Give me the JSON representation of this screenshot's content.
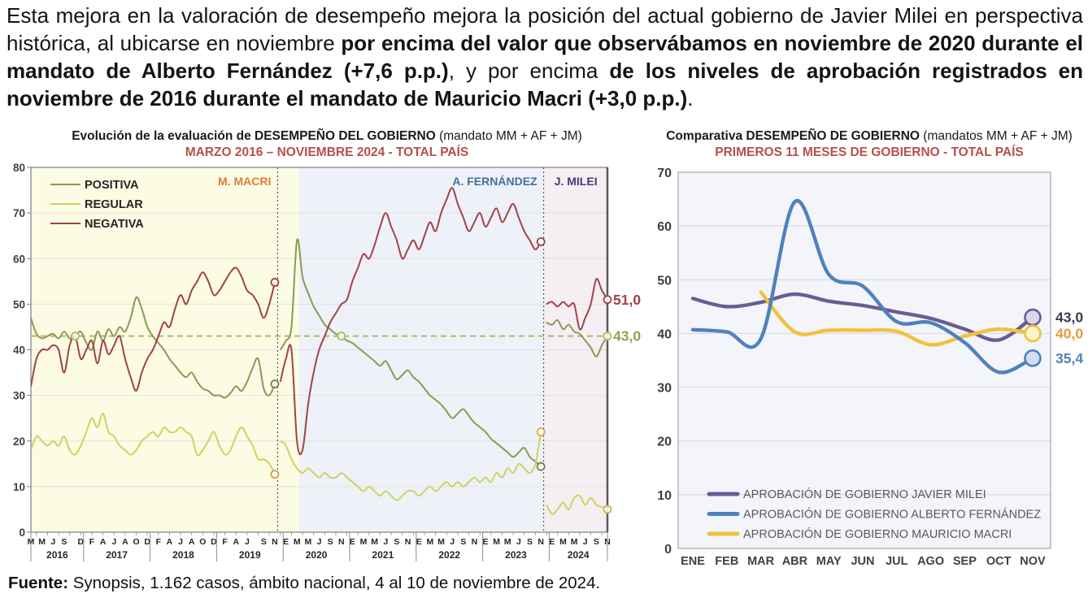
{
  "paragraph": {
    "segments": [
      {
        "text": "Esta mejora en la valoración de desempeño mejora la posición del actual gobierno de Javier Milei en perspectiva histórica, al ubicarse en noviembre ",
        "bold": false
      },
      {
        "text": "por encima del valor que observábamos en noviembre de 2020 durante el mandato de Alberto Fernández (+7,6 p.p.)",
        "bold": true
      },
      {
        "text": ", y por encima ",
        "bold": false
      },
      {
        "text": "de los niveles de aprobación registrados en noviembre de 2016 durante el mandato de Mauricio Macri (+3,0 p.p.)",
        "bold": true
      },
      {
        "text": ".",
        "bold": false
      }
    ]
  },
  "footer": {
    "segments": [
      {
        "text": "Fuente:",
        "bold": true
      },
      {
        "text": " Synopsis, 1.162 casos, ámbito nacional, 4 al 10 de noviembre de 2024.",
        "bold": false
      }
    ]
  },
  "chart_data": [
    {
      "id": "evolution",
      "type": "line",
      "title": "Evolución de la evaluación de DESEMPEÑO DEL GOBIERNO",
      "title_suffix": " (mandato MM + AF + JM)",
      "subtitle": "MARZO 2016 – NOVIEMBRE 2024 - TOTAL PAÍS",
      "ylim": [
        0,
        80
      ],
      "ytick_step": 10,
      "n_points": 105,
      "x_start": "MARZO 2016",
      "x_end": "NOVIEMBRE 2024",
      "grid": true,
      "segment_breaks": [
        45,
        93
      ],
      "bg_bands": [
        {
          "end_index": 48.4,
          "color": "#fcfbe3"
        },
        {
          "end_index": 92.5,
          "color": "#eef1f8"
        },
        {
          "end_index": 104,
          "color": "#f5eef3"
        }
      ],
      "divider_indices": [
        44.5,
        92.5
      ],
      "region_labels": [
        {
          "text": "M. MACRI",
          "color": "#e07c3a",
          "anchor_index": 44.5,
          "align": "end"
        },
        {
          "text": "A. FERNÁNDEZ",
          "color": "#41719c",
          "anchor_index": 92.5,
          "align": "end"
        },
        {
          "text": "J. MILEI",
          "color": "#3e3e75",
          "anchor_index": 98.3,
          "align": "middle"
        }
      ],
      "reference_line": {
        "value": 43,
        "color": "#a8bc66"
      },
      "series": [
        {
          "name": "POSITIVA",
          "color": "#8a9a56",
          "values": [
            47,
            43.5,
            42.5,
            43,
            43.5,
            42.5,
            44,
            42.5,
            43,
            44,
            41.5,
            40,
            44,
            42,
            44.5,
            43,
            45,
            44,
            47,
            51.5,
            49,
            45,
            43,
            41.5,
            40,
            38,
            36.5,
            35,
            34,
            35,
            33,
            31.5,
            31,
            30,
            30,
            29.5,
            30.5,
            32,
            31,
            33,
            36,
            38,
            31.5,
            30,
            32.5,
            40,
            42,
            45,
            64,
            56,
            52.5,
            49.5,
            47.5,
            45.5,
            44.5,
            43.5,
            43,
            42,
            41.5,
            40.5,
            39.5,
            38.5,
            37.5,
            36.5,
            37.5,
            35.5,
            33.5,
            34.5,
            35.5,
            34,
            33,
            31.5,
            30,
            29,
            28,
            26.5,
            25,
            26,
            27,
            25.5,
            24,
            23,
            22,
            20.5,
            19.5,
            18.5,
            17.5,
            16.5,
            17.5,
            18.5,
            16.5,
            15.5,
            14.4,
            46,
            45.5,
            46.5,
            44.5,
            45.5,
            44,
            43.5,
            42,
            40.5,
            38.5,
            41,
            43
          ]
        },
        {
          "name": "REGULAR",
          "color": "#cdd35f",
          "values": [
            18,
            21,
            20,
            19,
            20,
            19,
            21,
            18,
            17,
            19,
            22,
            25,
            23,
            26,
            22,
            21,
            19,
            18,
            17,
            18,
            20,
            21,
            22,
            21,
            23,
            22,
            22,
            23,
            22,
            21,
            17,
            18,
            20,
            22,
            19,
            17,
            18,
            21,
            23,
            21,
            19,
            16,
            16,
            15,
            12.7,
            20,
            19,
            16,
            14,
            13,
            14,
            13,
            12,
            13,
            12,
            12,
            13,
            12,
            11,
            10,
            9,
            10,
            9,
            8,
            9,
            8,
            7,
            8,
            9,
            9,
            8,
            9,
            10,
            9,
            10,
            11,
            10,
            11,
            10,
            11,
            12,
            11,
            12,
            11,
            13,
            12,
            14,
            13,
            15,
            14,
            13,
            15,
            22,
            6,
            4,
            5,
            6.5,
            5,
            7.5,
            8,
            6,
            7.5,
            6,
            5.5,
            5
          ]
        },
        {
          "name": "NEGATIVA",
          "color": "#a04345",
          "values": [
            32,
            38,
            40,
            40,
            41,
            40,
            35,
            41,
            43,
            38,
            40,
            42,
            37,
            42,
            39,
            41,
            43,
            38,
            34,
            31,
            35,
            38,
            40,
            43,
            46,
            45,
            49,
            52,
            50,
            53,
            55,
            57,
            55,
            52,
            53,
            55,
            57,
            58,
            56,
            53,
            52,
            50,
            47,
            50,
            54.8,
            33,
            38,
            40,
            20,
            18,
            28,
            35,
            40,
            43,
            46,
            48,
            50,
            51,
            55,
            58,
            61,
            60,
            63,
            67,
            70,
            67,
            64,
            60,
            62,
            64,
            62,
            65,
            68,
            66,
            70,
            73,
            75.5,
            72,
            69,
            66,
            68,
            70,
            67,
            69,
            71,
            68,
            70,
            72,
            69,
            66,
            64,
            62,
            63.7,
            50,
            50.5,
            49.5,
            50.5,
            49.5,
            50,
            44.5,
            47,
            50,
            55.5,
            53,
            51
          ]
        }
      ],
      "markers": [
        {
          "i": 8,
          "v": 43,
          "stroke": "#a8bc66"
        },
        {
          "i": 44,
          "v": 54.8,
          "stroke": "#a04345"
        },
        {
          "i": 44,
          "v": 32.5,
          "stroke": "#71803f"
        },
        {
          "i": 44,
          "v": 12.7,
          "stroke": "#e0973f"
        },
        {
          "i": 56,
          "v": 43,
          "stroke": "#a8bc66"
        },
        {
          "i": 92,
          "v": 63.7,
          "stroke": "#a04345"
        },
        {
          "i": 92,
          "v": 22,
          "stroke": "#d3b13f"
        },
        {
          "i": 92,
          "v": 14.4,
          "stroke": "#71803f"
        },
        {
          "i": 104,
          "v": 51,
          "stroke": "#a04345"
        },
        {
          "i": 104,
          "v": 43,
          "stroke": "#a8bc66"
        },
        {
          "i": 104,
          "v": 5,
          "stroke": "#d3b13f"
        }
      ],
      "end_labels": [
        {
          "text": "51,0",
          "value": 51.0,
          "color": "#a04345"
        },
        {
          "text": "43,0",
          "value": 43.0,
          "color": "#8fa44f"
        }
      ],
      "month_letters": [
        {
          "t": "M",
          "i": 0
        },
        {
          "t": "M",
          "i": 2
        },
        {
          "t": "J",
          "i": 4
        },
        {
          "t": "S",
          "i": 6
        },
        {
          "t": "D",
          "i": 9
        },
        {
          "t": "F",
          "i": 11
        },
        {
          "t": "A",
          "i": 13
        },
        {
          "t": "J",
          "i": 15
        },
        {
          "t": "A",
          "i": 17
        },
        {
          "t": "O",
          "i": 19
        },
        {
          "t": "D",
          "i": 21
        },
        {
          "t": "F",
          "i": 23
        },
        {
          "t": "A",
          "i": 25
        },
        {
          "t": "J",
          "i": 27
        },
        {
          "t": "A",
          "i": 29
        },
        {
          "t": "O",
          "i": 31
        },
        {
          "t": "D",
          "i": 33
        },
        {
          "t": "F",
          "i": 35
        },
        {
          "t": "A",
          "i": 37
        },
        {
          "t": "J",
          "i": 39
        },
        {
          "t": "S",
          "i": 42
        },
        {
          "t": "N",
          "i": 44
        },
        {
          "t": "E",
          "i": 46
        },
        {
          "t": "M",
          "i": 48
        },
        {
          "t": "M",
          "i": 50
        },
        {
          "t": "J",
          "i": 52
        },
        {
          "t": "S",
          "i": 54
        },
        {
          "t": "N",
          "i": 56
        },
        {
          "t": "E",
          "i": 58
        },
        {
          "t": "M",
          "i": 60
        },
        {
          "t": "M",
          "i": 62
        },
        {
          "t": "J",
          "i": 64
        },
        {
          "t": "S",
          "i": 66
        },
        {
          "t": "N",
          "i": 68
        },
        {
          "t": "E",
          "i": 70
        },
        {
          "t": "M",
          "i": 72
        },
        {
          "t": "M",
          "i": 74
        },
        {
          "t": "J",
          "i": 76
        },
        {
          "t": "S",
          "i": 78
        },
        {
          "t": "N",
          "i": 80
        },
        {
          "t": "E",
          "i": 82
        },
        {
          "t": "M",
          "i": 84
        },
        {
          "t": "M",
          "i": 86
        },
        {
          "t": "J",
          "i": 88
        },
        {
          "t": "S",
          "i": 90
        },
        {
          "t": "N",
          "i": 92
        },
        {
          "t": "E",
          "i": 94
        },
        {
          "t": "M",
          "i": 96
        },
        {
          "t": "M",
          "i": 98
        },
        {
          "t": "J",
          "i": 100
        },
        {
          "t": "S",
          "i": 102
        },
        {
          "t": "N",
          "i": 104
        }
      ],
      "year_labels": [
        {
          "text": "2016",
          "start": 0,
          "end": 9.5
        },
        {
          "text": "2017",
          "start": 9.5,
          "end": 21.5
        },
        {
          "text": "2018",
          "start": 21.5,
          "end": 33.5
        },
        {
          "text": "2019",
          "start": 33.5,
          "end": 45.5
        },
        {
          "text": "2020",
          "start": 45.5,
          "end": 57.5
        },
        {
          "text": "2021",
          "start": 57.5,
          "end": 69.5
        },
        {
          "text": "2022",
          "start": 69.5,
          "end": 81.5
        },
        {
          "text": "2023",
          "start": 81.5,
          "end": 93.5
        },
        {
          "text": "2024",
          "start": 93.5,
          "end": 104
        }
      ]
    },
    {
      "id": "comparative",
      "type": "line",
      "title": "Comparativa DESEMPEÑO DE GOBIERNO",
      "title_suffix": " (mandatos MM + AF + JM)",
      "subtitle": "PRIMEROS 11 MESES DE GOBIERNO - TOTAL PAÍS",
      "ylim": [
        0,
        70
      ],
      "ytick_step": 10,
      "grid": true,
      "categories": [
        "ENE",
        "FEB",
        "MAR",
        "ABR",
        "MAY",
        "JUN",
        "JUL",
        "AGO",
        "SEP",
        "OCT",
        "NOV"
      ],
      "series": [
        {
          "name": "APROBACIÓN DE GOBIERNO JAVIER MILEI",
          "color": "#6a5b96",
          "marker_fill": "#d9d6e8",
          "values": [
            46.5,
            45.0,
            45.8,
            47.3,
            46.0,
            45.2,
            44.0,
            42.8,
            40.8,
            38.8,
            43.0
          ]
        },
        {
          "name": "APROBACIÓN DE GOBIERNO ALBERTO FERNÁNDEZ",
          "color": "#4f81bd",
          "marker_fill": "#cfdff0",
          "values": [
            40.7,
            40.3,
            39.0,
            64.5,
            51.0,
            48.8,
            42.2,
            42.0,
            38.3,
            32.8,
            35.4
          ]
        },
        {
          "name": "APROBACIÓN DE GOBIERNO MAURICIO MACRI",
          "color": "#f1c13d",
          "marker_fill": "#fdf3cd",
          "values": [
            null,
            null,
            47.7,
            40.3,
            40.6,
            40.6,
            40.4,
            37.9,
            39.5,
            40.8,
            40.0
          ]
        }
      ],
      "end_labels": [
        {
          "text": "43,0",
          "value": 43.0,
          "color": "#3c3b52",
          "series": 0
        },
        {
          "text": "40,0",
          "value": 40.0,
          "color": "#e8993c",
          "series": 2
        },
        {
          "text": "35,4",
          "value": 35.4,
          "color": "#4f81bd",
          "series": 1
        }
      ]
    }
  ]
}
